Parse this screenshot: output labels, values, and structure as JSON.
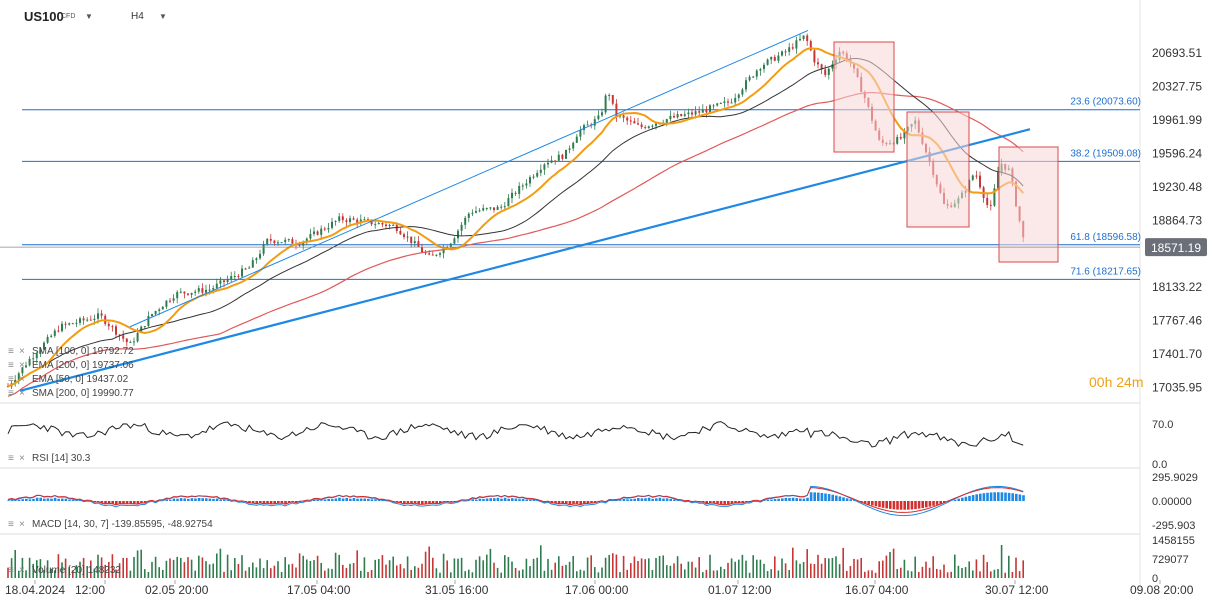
{
  "header": {
    "symbol": "US100",
    "type": "CFD",
    "timeframe": "H4"
  },
  "countdown": {
    "hours": "00",
    "h_unit": "h",
    "minutes": "24",
    "m_unit": "m"
  },
  "price_axis": {
    "ticks": [
      "20693.51",
      "20327.75",
      "19961.99",
      "19596.24",
      "19230.48",
      "18864.73",
      "18133.22",
      "17767.46",
      "17401.70",
      "17035.95"
    ],
    "ylim": [
      17000,
      20960
    ],
    "current_price": "18571.19",
    "current_price_color": "#6b6f78"
  },
  "time_axis": {
    "ticks": [
      "18.04.2024",
      "12:00",
      "02.05 20:00",
      "17.05 04:00",
      "31.05 16:00",
      "17.06 00:00",
      "01.07 12:00",
      "16.07 04:00",
      "30.07 12:00",
      "09.08 20:00"
    ]
  },
  "fibonacci": [
    {
      "label": "23.6 (20073.60)",
      "value": 20073.6
    },
    {
      "label": "38.2 (19509.08)",
      "value": 19509.08
    },
    {
      "label": "61.8 (18596.58)",
      "value": 18596.58
    },
    {
      "label": "71.6 (18217.65)",
      "value": 18217.65
    }
  ],
  "legend": {
    "sma100": "SMA [100, 0] 19792.72",
    "ema200": "EMA [200, 0] 19737.06",
    "ema50": "EMA [50, 0] 19437.02",
    "sma200": "SMA [200, 0] 19990.77"
  },
  "rsi": {
    "label": "RSI [14] 30.3",
    "ticks": [
      "70.0",
      "0.0"
    ]
  },
  "macd": {
    "label": "MACD [14, 30, 7] -139.85595, -48.92754",
    "ticks": [
      "295.9029",
      "0.00000",
      "-295.903"
    ]
  },
  "volume": {
    "label": "Volume [20] 148232",
    "ticks": [
      "1458155",
      "729077",
      "0"
    ]
  },
  "colors": {
    "fib": "#1f6fd1",
    "trend": "#1e88e5",
    "ema50": "#f39c12",
    "sma100": "#333333",
    "ema200": "#e05a5a",
    "box_fill": "#f7d6d6",
    "box_stroke": "#d94848",
    "up": "#2e7d4f",
    "down": "#c73535",
    "macd_pos": "#1e88e5",
    "macd_neg": "#d32f2f"
  },
  "chart_data": {
    "type": "line",
    "title": "US100 CFD H4",
    "x": [
      "18.04.2024",
      "02.05",
      "17.05",
      "31.05",
      "17.06",
      "01.07",
      "16.07",
      "30.07",
      "09.08"
    ],
    "series": [
      {
        "name": "US100",
        "values": [
          17050,
          18050,
          18800,
          18500,
          19750,
          20100,
          20700,
          19300,
          18571
        ]
      }
    ],
    "ylim": [
      17000,
      20960
    ]
  }
}
